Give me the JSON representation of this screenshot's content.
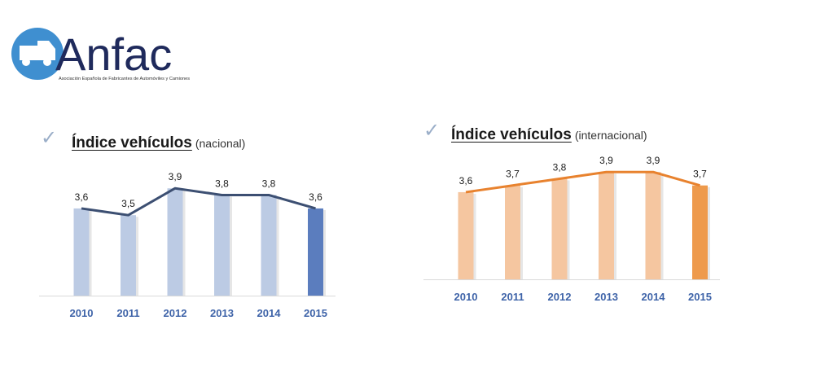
{
  "logo": {
    "name": "Anfac",
    "tagline": "Asociación Española de Fabricantes de Automóviles y Camiones"
  },
  "chart_data": [
    {
      "type": "bar",
      "title": "Índice vehículos",
      "subtitle": "(nacional)",
      "categories": [
        "2010",
        "2011",
        "2012",
        "2013",
        "2014",
        "2015"
      ],
      "series": [
        {
          "values": [
            3.6,
            3.5,
            3.9,
            3.8,
            3.8,
            3.6
          ]
        }
      ],
      "data_labels": [
        "3,6",
        "3,5",
        "3,9",
        "3,8",
        "3,8",
        "3,6"
      ],
      "overlay_line": true,
      "ylim": [
        2.3,
        4.0
      ],
      "grid": false,
      "colors": {
        "bar": "#bccbe4",
        "last_bar": "#5b7dbe",
        "line": "#3c4f72",
        "tick": "#3e63a8"
      }
    },
    {
      "type": "bar",
      "title": "Índice vehículos",
      "subtitle": "(internacional)",
      "categories": [
        "2010",
        "2011",
        "2012",
        "2013",
        "2014",
        "2015"
      ],
      "series": [
        {
          "values": [
            3.6,
            3.7,
            3.8,
            3.9,
            3.9,
            3.7
          ]
        }
      ],
      "data_labels": [
        "3,6",
        "3,7",
        "3,8",
        "3,9",
        "3,9",
        "3,7"
      ],
      "overlay_line": true,
      "ylim": [
        2.3,
        4.0
      ],
      "grid": false,
      "colors": {
        "bar": "#f5c6a0",
        "last_bar": "#ee9a4c",
        "line": "#e8822e",
        "tick": "#3e63a8"
      }
    }
  ]
}
